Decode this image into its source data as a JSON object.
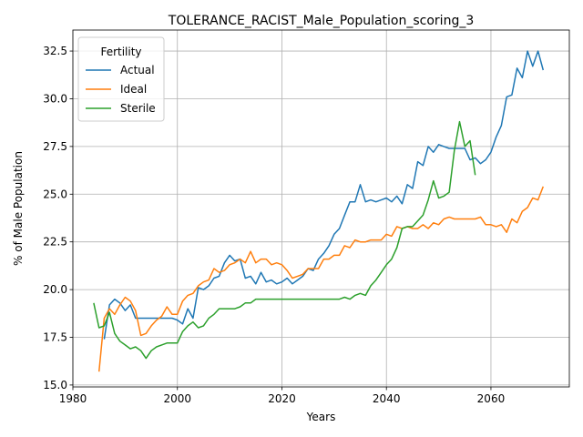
{
  "chart_data": {
    "type": "line",
    "title": "TOLERANCE_RACIST_Male_Population_scoring_3",
    "xlabel": "Years",
    "ylabel": "% of Male Population",
    "xlim": [
      1980,
      2075
    ],
    "ylim": [
      14.9,
      33.6
    ],
    "xticks": [
      1980,
      2000,
      2020,
      2040,
      2060
    ],
    "xtick_labels": [
      "1980",
      "2000",
      "2020",
      "2040",
      "2060"
    ],
    "yticks": [
      15.0,
      17.5,
      20.0,
      22.5,
      25.0,
      27.5,
      30.0,
      32.5
    ],
    "ytick_labels": [
      "15.0",
      "17.5",
      "20.0",
      "22.5",
      "25.0",
      "27.5",
      "30.0",
      "32.5"
    ],
    "grid": true,
    "legend": {
      "title": "Fertility",
      "placement": "top-left"
    },
    "series": [
      {
        "name": "Actual",
        "color": "#1f77b4",
        "x": [
          1986,
          1987,
          1988,
          1989,
          1990,
          1991,
          1992,
          1993,
          1994,
          1995,
          1996,
          1997,
          1998,
          1999,
          2000,
          2001,
          2002,
          2003,
          2004,
          2005,
          2006,
          2007,
          2008,
          2009,
          2010,
          2011,
          2012,
          2013,
          2014,
          2015,
          2016,
          2017,
          2018,
          2019,
          2020,
          2021,
          2022,
          2023,
          2024,
          2025,
          2026,
          2027,
          2028,
          2029,
          2030,
          2031,
          2032,
          2033,
          2034,
          2035,
          2036,
          2037,
          2038,
          2039,
          2040,
          2041,
          2042,
          2043,
          2044,
          2045,
          2046,
          2047,
          2048,
          2049,
          2050,
          2051,
          2052,
          2053,
          2054,
          2055,
          2056,
          2057,
          2058,
          2059,
          2060,
          2061,
          2062,
          2063,
          2064,
          2065,
          2066,
          2067,
          2068,
          2069,
          2070
        ],
        "y": [
          17.4,
          19.2,
          19.5,
          19.3,
          18.9,
          19.2,
          18.5,
          18.5,
          18.5,
          18.5,
          18.5,
          18.5,
          18.5,
          18.5,
          18.4,
          18.2,
          19.0,
          18.5,
          20.1,
          20.0,
          20.2,
          20.6,
          20.7,
          21.4,
          21.8,
          21.5,
          21.6,
          20.6,
          20.7,
          20.3,
          20.9,
          20.4,
          20.5,
          20.3,
          20.4,
          20.6,
          20.3,
          20.5,
          20.7,
          21.1,
          21.0,
          21.6,
          21.9,
          22.3,
          22.9,
          23.2,
          23.9,
          24.6,
          24.6,
          25.5,
          24.6,
          24.7,
          24.6,
          24.7,
          24.8,
          24.6,
          24.9,
          24.5,
          25.5,
          25.3,
          26.7,
          26.5,
          27.5,
          27.2,
          27.6,
          27.5,
          27.4,
          27.4,
          27.4,
          27.4,
          26.8,
          26.9,
          26.6,
          26.8,
          27.2,
          28.0,
          28.6,
          30.1,
          30.2,
          31.6,
          31.1,
          32.5,
          31.7,
          32.5,
          31.5
        ]
      },
      {
        "name": "Ideal",
        "color": "#ff7f0e",
        "x": [
          1985,
          1986,
          1987,
          1988,
          1989,
          1990,
          1991,
          1992,
          1993,
          1994,
          1995,
          1996,
          1997,
          1998,
          1999,
          2000,
          2001,
          2002,
          2003,
          2004,
          2005,
          2006,
          2007,
          2008,
          2009,
          2010,
          2011,
          2012,
          2013,
          2014,
          2015,
          2016,
          2017,
          2018,
          2019,
          2020,
          2021,
          2022,
          2023,
          2024,
          2025,
          2026,
          2027,
          2028,
          2029,
          2030,
          2031,
          2032,
          2033,
          2034,
          2035,
          2036,
          2037,
          2038,
          2039,
          2040,
          2041,
          2042,
          2043,
          2044,
          2045,
          2046,
          2047,
          2048,
          2049,
          2050,
          2051,
          2052,
          2053,
          2054,
          2055,
          2056,
          2057,
          2058,
          2059,
          2060,
          2061,
          2062,
          2063,
          2064,
          2065,
          2066,
          2067,
          2068,
          2069,
          2070
        ],
        "y": [
          15.7,
          18.5,
          19.0,
          18.7,
          19.2,
          19.6,
          19.4,
          18.9,
          17.6,
          17.7,
          18.1,
          18.4,
          18.6,
          19.1,
          18.7,
          18.7,
          19.4,
          19.7,
          19.8,
          20.2,
          20.4,
          20.5,
          21.1,
          20.9,
          21.0,
          21.3,
          21.4,
          21.6,
          21.4,
          22.0,
          21.4,
          21.6,
          21.6,
          21.3,
          21.4,
          21.3,
          21.0,
          20.6,
          20.7,
          20.8,
          21.1,
          21.1,
          21.1,
          21.6,
          21.6,
          21.8,
          21.8,
          22.3,
          22.2,
          22.6,
          22.5,
          22.5,
          22.6,
          22.6,
          22.6,
          22.9,
          22.8,
          23.3,
          23.2,
          23.3,
          23.2,
          23.2,
          23.4,
          23.2,
          23.5,
          23.4,
          23.7,
          23.8,
          23.7,
          23.7,
          23.7,
          23.7,
          23.7,
          23.8,
          23.4,
          23.4,
          23.3,
          23.4,
          23.0,
          23.7,
          23.5,
          24.1,
          24.3,
          24.8,
          24.7,
          25.4
        ]
      },
      {
        "name": "Sterile",
        "color": "#2ca02c",
        "x": [
          1984,
          1985,
          1986,
          1987,
          1988,
          1989,
          1990,
          1991,
          1992,
          1993,
          1994,
          1995,
          1996,
          1997,
          1998,
          1999,
          2000,
          2001,
          2002,
          2003,
          2004,
          2005,
          2006,
          2007,
          2008,
          2009,
          2010,
          2011,
          2012,
          2013,
          2014,
          2015,
          2016,
          2017,
          2018,
          2019,
          2020,
          2021,
          2022,
          2023,
          2024,
          2025,
          2026,
          2027,
          2028,
          2029,
          2030,
          2031,
          2032,
          2033,
          2034,
          2035,
          2036,
          2037,
          2038,
          2039,
          2040,
          2041,
          2042,
          2043,
          2044,
          2045,
          2046,
          2047,
          2048,
          2049,
          2050,
          2051,
          2052,
          2053,
          2054,
          2055,
          2056,
          2057
        ],
        "y": [
          19.3,
          18.0,
          18.1,
          18.8,
          17.7,
          17.3,
          17.1,
          16.9,
          17.0,
          16.8,
          16.4,
          16.8,
          17.0,
          17.1,
          17.2,
          17.2,
          17.2,
          17.8,
          18.1,
          18.3,
          18.0,
          18.1,
          18.5,
          18.7,
          19.0,
          19.0,
          19.0,
          19.0,
          19.1,
          19.3,
          19.3,
          19.5,
          19.5,
          19.5,
          19.5,
          19.5,
          19.5,
          19.5,
          19.5,
          19.5,
          19.5,
          19.5,
          19.5,
          19.5,
          19.5,
          19.5,
          19.5,
          19.5,
          19.6,
          19.5,
          19.7,
          19.8,
          19.7,
          20.2,
          20.5,
          20.9,
          21.3,
          21.6,
          22.2,
          23.2,
          23.3,
          23.3,
          23.6,
          23.9,
          24.7,
          25.7,
          24.8,
          24.9,
          25.1,
          27.3,
          28.8,
          27.5,
          27.8,
          26.0
        ]
      }
    ]
  }
}
